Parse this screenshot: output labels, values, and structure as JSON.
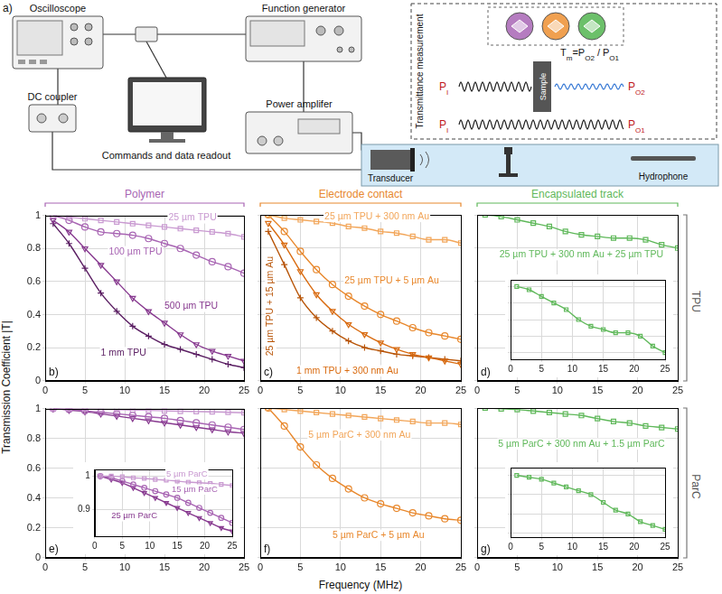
{
  "diagram": {
    "panel": "a)",
    "instruments": {
      "oscilloscope": "Oscilloscope",
      "function_generator": "Function generator",
      "dc_coupler": "DC coupler",
      "power_amplifier": "Power amplifer",
      "computer": "Commands and data readout",
      "transducer": "Transducer",
      "hydrophone": "Hydrophone"
    },
    "measurement": {
      "title": "Transmittance measurement",
      "sample": "Sample",
      "input": [
        {
          "text": "P",
          "sub": "I"
        }
      ],
      "output_sample": [
        {
          "text": "P",
          "sub": "O2"
        }
      ],
      "output_reference": [
        {
          "text": "P",
          "sub": "O1"
        }
      ],
      "formula": [
        {
          "text": "T",
          "sub": "m"
        },
        {
          "text": "=P",
          "sub": "O2"
        },
        {
          "text": " / P",
          "sub": "O1"
        }
      ],
      "sample_colors": [
        "#b57cc0",
        "#f0a050",
        "#6cc06a"
      ]
    }
  },
  "figure": {
    "y_axis_label": "Transmission Coefficient |T|",
    "x_axis_label": "Frequency (MHz)",
    "column_heads": [
      {
        "text": "Polymer",
        "color": "#a865b3"
      },
      {
        "text": "Electrode contact",
        "color": "#e8882d"
      },
      {
        "text": "Encapsulated track",
        "color": "#5fb85a"
      }
    ],
    "row_heads": [
      "TPU",
      "ParC"
    ]
  },
  "chart_data": [
    {
      "panel": "b)",
      "type": "line",
      "x": [
        1,
        3,
        5,
        7,
        9,
        11,
        13,
        15,
        17,
        19,
        21,
        23,
        25
      ],
      "xlim": [
        0,
        25
      ],
      "xticks": [
        0,
        5,
        10,
        15,
        20,
        25
      ],
      "ylim": [
        0,
        1
      ],
      "yticks": [
        0,
        0.2,
        0.4,
        0.6,
        0.8,
        1
      ],
      "grid": true,
      "series": [
        {
          "name": "25 µm TPU",
          "color": "#c99ad1",
          "marker": "square",
          "line_style": "solid",
          "values": [
            1,
            0.99,
            0.98,
            0.97,
            0.96,
            0.95,
            0.94,
            0.93,
            0.92,
            0.91,
            0.9,
            0.89,
            0.87
          ]
        },
        {
          "name": "100 µm TPU",
          "color": "#a865b3",
          "marker": "circle",
          "line_style": "solid",
          "values": [
            1,
            0.97,
            0.93,
            0.9,
            0.89,
            0.88,
            0.86,
            0.83,
            0.8,
            0.76,
            0.72,
            0.69,
            0.65
          ]
        },
        {
          "name": "500 µm TPU",
          "color": "#87398f",
          "marker": "triangle_down",
          "line_style": "solid",
          "values": [
            0.97,
            0.9,
            0.8,
            0.7,
            0.6,
            0.5,
            0.42,
            0.35,
            0.28,
            0.22,
            0.18,
            0.15,
            0.12
          ]
        },
        {
          "name": "1 mm TPU",
          "color": "#5b1f63",
          "marker": "plus",
          "line_style": "solid",
          "values": [
            0.95,
            0.83,
            0.68,
            0.53,
            0.42,
            0.33,
            0.27,
            0.22,
            0.19,
            0.16,
            0.13,
            0.1,
            0.08
          ]
        }
      ]
    },
    {
      "panel": "c)",
      "type": "line",
      "x": [
        1,
        3,
        5,
        7,
        9,
        11,
        13,
        15,
        17,
        19,
        21,
        23,
        25
      ],
      "xlim": [
        0,
        25
      ],
      "xticks": [
        0,
        5,
        10,
        15,
        20,
        25
      ],
      "ylim": [
        0,
        1
      ],
      "yticks": [
        0,
        0.2,
        0.4,
        0.6,
        0.8,
        1
      ],
      "grid": true,
      "tick_labels": "x",
      "series": [
        {
          "name": "25 µm TPU + 300 nm Au",
          "color": "#f2a65a",
          "marker": "square",
          "line_style": "solid",
          "values": [
            1,
            0.98,
            0.97,
            0.96,
            0.95,
            0.93,
            0.92,
            0.9,
            0.89,
            0.87,
            0.85,
            0.85,
            0.83
          ]
        },
        {
          "name": "25 µm TPU + 5 µm Au",
          "color": "#e8882d",
          "marker": "circle",
          "line_style": "solid",
          "values": [
            1,
            0.9,
            0.78,
            0.67,
            0.58,
            0.51,
            0.45,
            0.4,
            0.36,
            0.32,
            0.29,
            0.27,
            0.25
          ]
        },
        {
          "name": "1 mm TPU + 300 nm Au",
          "color": "#d96b10",
          "marker": "triangle_down",
          "line_style": "solid",
          "values": [
            0.95,
            0.82,
            0.66,
            0.52,
            0.42,
            0.34,
            0.28,
            0.23,
            0.19,
            0.16,
            0.14,
            0.12,
            0.1
          ]
        },
        {
          "name": "25 µm TPU + 15 µm Au",
          "color": "#b85508",
          "marker": "plus",
          "line_style": "solid",
          "values": [
            0.9,
            0.7,
            0.5,
            0.38,
            0.3,
            0.24,
            0.2,
            0.18,
            0.16,
            0.15,
            0.14,
            0.13,
            0.12
          ]
        }
      ]
    },
    {
      "panel": "d)",
      "type": "line",
      "x": [
        1,
        3,
        5,
        7,
        9,
        11,
        13,
        15,
        17,
        19,
        21,
        23,
        25
      ],
      "xlim": [
        0,
        25
      ],
      "xticks": [
        0,
        5,
        10,
        15,
        20,
        25
      ],
      "ylim": [
        0,
        1
      ],
      "yticks": [
        0,
        0.2,
        0.4,
        0.6,
        0.8,
        1
      ],
      "grid": true,
      "tick_labels": "x",
      "series": [
        {
          "name": "25 µm TPU + 300 nm Au + 25 µm TPU",
          "color": "#5fb85a",
          "marker": "square",
          "line_style": "solid",
          "values": [
            1,
            0.99,
            0.97,
            0.95,
            0.93,
            0.9,
            0.88,
            0.87,
            0.86,
            0.86,
            0.85,
            0.82,
            0.8
          ]
        }
      ],
      "inset": {
        "type": "line",
        "x": [
          1,
          3,
          5,
          7,
          9,
          11,
          13,
          15,
          17,
          19,
          21,
          23,
          25
        ],
        "xlim": [
          0,
          25
        ],
        "xticks": [
          0,
          5,
          10,
          15,
          20,
          25
        ],
        "ylim": [
          0.78,
          1.02
        ],
        "yticks": [
          0.8,
          0.85,
          0.9,
          0.95,
          1
        ],
        "grid": true,
        "tick_labels": "x",
        "series": [
          {
            "color": "#5fb85a",
            "marker": "square",
            "line_style": "solid",
            "values": [
              1,
              0.99,
              0.97,
              0.95,
              0.93,
              0.9,
              0.88,
              0.87,
              0.86,
              0.86,
              0.85,
              0.82,
              0.8
            ]
          }
        ]
      }
    },
    {
      "panel": "e)",
      "type": "line",
      "x": [
        1,
        3,
        5,
        7,
        9,
        11,
        13,
        15,
        17,
        19,
        21,
        23,
        25
      ],
      "xlim": [
        0,
        25
      ],
      "xticks": [
        0,
        5,
        10,
        15,
        20,
        25
      ],
      "ylim": [
        0,
        1
      ],
      "yticks": [
        0,
        0.2,
        0.4,
        0.6,
        0.8,
        1
      ],
      "grid": true,
      "series": [
        {
          "color": "#c99ad1",
          "marker": "square",
          "line_style": "solid",
          "values": [
            1,
            1,
            0.998,
            0.995,
            0.993,
            0.99,
            0.988,
            0.985,
            0.982,
            0.98,
            0.978,
            0.975,
            0.972
          ]
        },
        {
          "color": "#a865b3",
          "marker": "circle",
          "line_style": "solid",
          "values": [
            1,
            0.995,
            0.985,
            0.975,
            0.965,
            0.955,
            0.945,
            0.935,
            0.92,
            0.905,
            0.89,
            0.875,
            0.86
          ]
        },
        {
          "color": "#87398f",
          "marker": "triangle_down",
          "line_style": "solid",
          "values": [
            1,
            0.99,
            0.98,
            0.965,
            0.95,
            0.935,
            0.92,
            0.905,
            0.89,
            0.875,
            0.86,
            0.845,
            0.835
          ]
        }
      ],
      "inset": {
        "type": "line",
        "x": [
          1,
          3,
          5,
          7,
          9,
          11,
          13,
          15,
          17,
          19,
          21,
          23,
          25
        ],
        "xlim": [
          0,
          25
        ],
        "xticks": [
          0,
          5,
          10,
          15,
          20,
          25
        ],
        "ylim": [
          0.82,
          1.02
        ],
        "yticks": [
          0.9,
          1
        ],
        "grid": true,
        "series": [
          {
            "name": "5 µm ParC",
            "color": "#c99ad1",
            "marker": "square",
            "line_style": "solid",
            "values": [
              1,
              1,
              0.998,
              0.995,
              0.993,
              0.99,
              0.988,
              0.985,
              0.982,
              0.98,
              0.978,
              0.975,
              0.972
            ]
          },
          {
            "name": "15 µm ParC",
            "color": "#a865b3",
            "marker": "circle",
            "line_style": "solid",
            "values": [
              1,
              0.995,
              0.985,
              0.975,
              0.965,
              0.955,
              0.945,
              0.935,
              0.92,
              0.905,
              0.89,
              0.875,
              0.86
            ]
          },
          {
            "name": "25 µm ParC",
            "color": "#87398f",
            "marker": "triangle_down",
            "line_style": "solid",
            "values": [
              1,
              0.99,
              0.98,
              0.965,
              0.95,
              0.935,
              0.92,
              0.905,
              0.89,
              0.875,
              0.86,
              0.845,
              0.835
            ]
          }
        ]
      }
    },
    {
      "panel": "f)",
      "type": "line",
      "x": [
        1,
        3,
        5,
        7,
        9,
        11,
        13,
        15,
        17,
        19,
        21,
        23,
        25
      ],
      "xlim": [
        0,
        25
      ],
      "xticks": [
        0,
        5,
        10,
        15,
        20,
        25
      ],
      "ylim": [
        0,
        1
      ],
      "yticks": [
        0,
        0.2,
        0.4,
        0.6,
        0.8,
        1
      ],
      "grid": true,
      "tick_labels": "x",
      "series": [
        {
          "name": "5 µm ParC + 300 nm Au",
          "color": "#f2a65a",
          "marker": "square",
          "line_style": "solid",
          "values": [
            1,
            0.99,
            0.98,
            0.97,
            0.96,
            0.95,
            0.94,
            0.93,
            0.92,
            0.91,
            0.9,
            0.9,
            0.89
          ]
        },
        {
          "name": "5 µm ParC + 5 µm Au",
          "color": "#e8882d",
          "marker": "circle",
          "line_style": "solid",
          "values": [
            1,
            0.88,
            0.74,
            0.62,
            0.53,
            0.46,
            0.4,
            0.36,
            0.33,
            0.3,
            0.28,
            0.26,
            0.25
          ]
        }
      ]
    },
    {
      "panel": "g)",
      "type": "line",
      "x": [
        1,
        3,
        5,
        7,
        9,
        11,
        13,
        15,
        17,
        19,
        21,
        23,
        25
      ],
      "xlim": [
        0,
        25
      ],
      "xticks": [
        0,
        5,
        10,
        15,
        20,
        25
      ],
      "ylim": [
        0,
        1
      ],
      "yticks": [
        0,
        0.2,
        0.4,
        0.6,
        0.8,
        1
      ],
      "grid": true,
      "tick_labels": "x",
      "series": [
        {
          "name": "5 µm ParC + 300 nm Au + 1.5 µm ParC",
          "color": "#5fb85a",
          "marker": "square",
          "line_style": "solid",
          "values": [
            1,
            0.995,
            0.99,
            0.98,
            0.97,
            0.96,
            0.95,
            0.93,
            0.91,
            0.9,
            0.88,
            0.87,
            0.86
          ]
        }
      ],
      "inset": {
        "type": "line",
        "x": [
          1,
          3,
          5,
          7,
          9,
          11,
          13,
          15,
          17,
          19,
          21,
          23,
          25
        ],
        "xlim": [
          0,
          25
        ],
        "xticks": [
          0,
          5,
          10,
          15,
          20,
          25
        ],
        "ylim": [
          0.84,
          1.02
        ],
        "yticks": [
          0.85,
          0.9,
          0.95,
          1
        ],
        "grid": true,
        "tick_labels": "x",
        "series": [
          {
            "color": "#5fb85a",
            "marker": "square",
            "line_style": "solid",
            "values": [
              1,
              0.995,
              0.99,
              0.98,
              0.97,
              0.96,
              0.95,
              0.93,
              0.91,
              0.9,
              0.88,
              0.87,
              0.86
            ]
          }
        ]
      }
    }
  ]
}
